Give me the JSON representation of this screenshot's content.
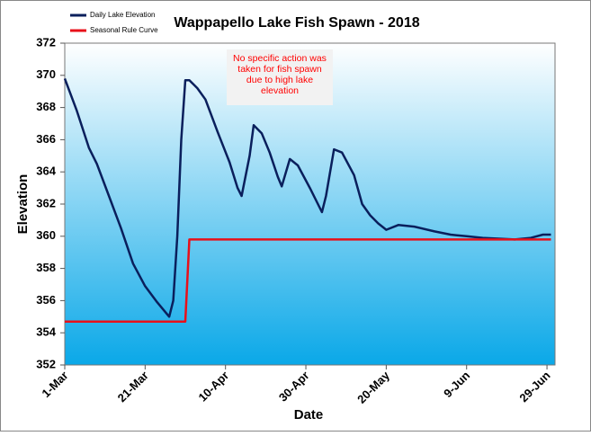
{
  "chart_data": {
    "type": "line",
    "title": "Wappapello Lake Fish Spawn - 2018",
    "x_label": "Date",
    "y_label": "Elevation",
    "annotation": [
      "No specific action was",
      "taken for fish spawn",
      "due to high lake",
      "elevation"
    ],
    "annotation_color": "#ff0000",
    "xlim": [
      "1-Mar",
      "1-Jul"
    ],
    "xticks": [
      "1-Mar",
      "21-Mar",
      "10-Apr",
      "30-Apr",
      "20-May",
      "9-Jun",
      "29-Jun"
    ],
    "ylim": [
      352,
      372
    ],
    "yticks": [
      352,
      354,
      356,
      358,
      360,
      362,
      364,
      366,
      368,
      370,
      372
    ],
    "legend": "top-left",
    "series": [
      {
        "name": "Daily Lake Elevation",
        "color": "#0a1f5c",
        "x": [
          "1-Mar",
          "4-Mar",
          "7-Mar",
          "9-Mar",
          "12-Mar",
          "15-Mar",
          "18-Mar",
          "21-Mar",
          "24-Mar",
          "27-Mar",
          "28-Mar",
          "29-Mar",
          "30-Mar",
          "31-Mar",
          "1-Apr",
          "3-Apr",
          "5-Apr",
          "8-Apr",
          "11-Apr",
          "13-Apr",
          "14-Apr",
          "16-Apr",
          "17-Apr",
          "19-Apr",
          "21-Apr",
          "23-Apr",
          "24-Apr",
          "26-Apr",
          "28-Apr",
          "1-May",
          "4-May",
          "5-May",
          "7-May",
          "9-May",
          "12-May",
          "14-May",
          "16-May",
          "18-May",
          "20-May",
          "23-May",
          "27-May",
          "1-Jun",
          "5-Jun",
          "9-Jun",
          "13-Jun",
          "17-Jun",
          "21-Jun",
          "25-Jun",
          "28-Jun",
          "30-Jun"
        ],
        "values": [
          369.8,
          367.8,
          365.5,
          364.5,
          362.5,
          360.5,
          358.3,
          356.9,
          355.9,
          355.0,
          356.0,
          360.0,
          366.0,
          369.7,
          369.7,
          369.2,
          368.5,
          366.5,
          364.6,
          363.0,
          362.5,
          365.0,
          366.9,
          366.4,
          365.2,
          363.7,
          363.1,
          364.8,
          364.4,
          363.0,
          361.5,
          362.5,
          365.4,
          365.2,
          363.8,
          362.0,
          361.3,
          360.8,
          360.4,
          360.7,
          360.6,
          360.3,
          360.1,
          360.0,
          359.9,
          359.85,
          359.8,
          359.9,
          360.1,
          360.1
        ]
      },
      {
        "name": "Seasonal Rule Curve",
        "color": "#e8101a",
        "x": [
          "1-Mar",
          "31-Mar",
          "1-Apr",
          "30-Jun"
        ],
        "values": [
          354.7,
          354.7,
          359.8,
          359.8
        ]
      }
    ]
  }
}
